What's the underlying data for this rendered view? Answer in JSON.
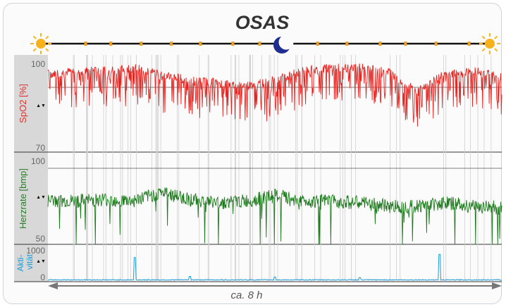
{
  "chart_data": {
    "type": "line",
    "title": "OSAS",
    "duration_label": "ca. 8 h",
    "panels": [
      {
        "name": "spo2",
        "ylabel": "SpO2 [%]",
        "ticks": [
          "100",
          "70"
        ],
        "ylim": [
          70,
          100
        ],
        "color": "#e52521",
        "reference_line": 95,
        "series": [
          {
            "x_hours": [
              0,
              0.5,
              1,
              1.5,
              2,
              2.5,
              3,
              3.5,
              4,
              4.5,
              5,
              5.5,
              6,
              6.5,
              7,
              7.5,
              8
            ],
            "values": [
              96,
              97,
              97,
              98,
              96,
              94,
              93,
              92,
              94,
              97,
              98,
              98,
              97,
              90,
              96,
              97,
              95
            ]
          }
        ]
      },
      {
        "name": "heart-rate",
        "ylabel": "Herzrate [bmp]",
        "ticks": [
          "100",
          "50"
        ],
        "ylim": [
          50,
          100
        ],
        "color": "#1d7a1d",
        "reference_line": 96,
        "series": [
          {
            "x_hours": [
              0,
              0.5,
              1,
              1.5,
              2,
              2.5,
              3,
              3.5,
              4,
              4.5,
              5,
              5.5,
              6,
              6.5,
              7,
              7.5,
              8
            ],
            "values": [
              75,
              75,
              76,
              75,
              80,
              76,
              74,
              75,
              78,
              75,
              75,
              74,
              72,
              72,
              74,
              72,
              71
            ]
          }
        ]
      },
      {
        "name": "activity",
        "ylabel": "Akti-\nvität",
        "ticks": [
          "1000",
          "0"
        ],
        "ylim": [
          0,
          1000
        ],
        "color": "#1e9bd7",
        "series": [
          {
            "x_hours": [
              0,
              1.53,
              2.5,
              4,
              5.5,
              6.9,
              8
            ],
            "values": [
              0,
              700,
              120,
              100,
              80,
              800,
              0
            ]
          }
        ]
      }
    ],
    "markers": [
      "sun",
      "moon",
      "sun"
    ],
    "arrow_symbol": "▲▼"
  }
}
